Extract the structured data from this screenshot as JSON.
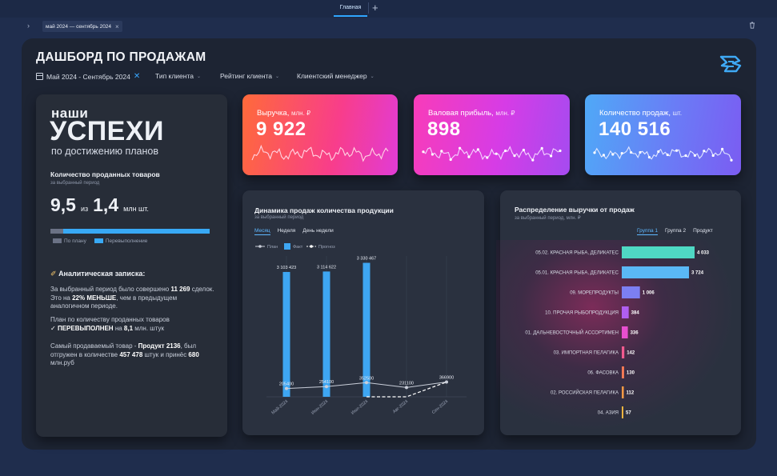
{
  "tabs": {
    "home": "Главная"
  },
  "filter_chip": "май 2024 — сентябрь 2024",
  "title": "ДАШБОРД ПО ПРОДАЖАМ",
  "filters": {
    "period": "Май 2024 - Сентябрь 2024",
    "client_type": "Тип клиента",
    "client_rating": "Рейтинг клиента",
    "client_manager": "Клиентский менеджер"
  },
  "success": {
    "line1": "наши",
    "line2": "УСПЕХИ",
    "line3": "по достижению планов",
    "sold_title": "Количество проданных товаров",
    "sold_period": "за выбранный период",
    "value_a": "9,5",
    "from": "из",
    "value_b": "1,4",
    "unit": "млн шт.",
    "overfulfillment": 0.92,
    "legend_plan": "По плану",
    "legend_over": "Перевыполнение",
    "note_title": "Аналитическая записка:",
    "n1_pre": "За выбранный период было совершено ",
    "n1_deals": "11 269",
    "n1_mid": " сделок. Это на ",
    "n1_pct": "22% МЕНЬШЕ",
    "n1_post": ", чем в предыдущем аналогичном периоде.",
    "n2_pre": "План по количеству проданных товаров",
    "n2_bold": "ПЕРЕВЫПОЛНЕН",
    "n2_mid": " на ",
    "n2_val": "8,1",
    "n2_post": " млн. штук",
    "n3_pre": "Самый продаваемый товар - ",
    "n3_prod": "Продукт 2136",
    "n3_mid": ", был отгружен в количестве ",
    "n3_qty": "457 478",
    "n3_mid2": " штук и принёс ",
    "n3_rev": "680",
    "n3_post": " млн.руб"
  },
  "kpis": [
    {
      "label": "Выручка,",
      "unit": "млн. ₽",
      "value": "9 922"
    },
    {
      "label": "Валовая прибыль,",
      "unit": "млн. ₽",
      "value": "898"
    },
    {
      "label": "Количество продаж,",
      "unit": "шт.",
      "value": "140 516"
    }
  ],
  "dynamics": {
    "title": "Динамика продаж количества продукции",
    "period": "за выбранный период",
    "tabs": [
      "Месяц",
      "Неделя",
      "День недели"
    ],
    "legend": [
      "План",
      "Факт",
      "Прогноз"
    ]
  },
  "distribution": {
    "title": "Распределение выручки от продаж",
    "period": "за выбранный период, млн. ₽",
    "tabs": [
      "Группа 1",
      "Группа 2",
      "Продукт"
    ]
  },
  "chart_data": [
    {
      "type": "bar",
      "title": "Динамика продаж количества продукции",
      "categories": [
        "Май-2024",
        "Июн-2024",
        "Июл-2024",
        "Авг-2024",
        "Сен-2024"
      ],
      "series": [
        {
          "name": "Факт",
          "values": [
            3103423,
            3114622,
            3330467,
            null,
            null
          ],
          "labels": [
            "3 103 423",
            "3 114 622",
            "3 330 467",
            "",
            ""
          ],
          "color": "#3ea6f2"
        },
        {
          "name": "План",
          "values": [
            205400,
            254100,
            352500,
            231100,
            366900
          ],
          "labels": [
            "205400",
            "254100",
            "352500",
            "231100",
            "366900"
          ],
          "color": "#c9ced9"
        },
        {
          "name": "Прогноз",
          "values": [
            null,
            null,
            0,
            0,
            366900
          ],
          "color": "#ffffff"
        }
      ],
      "ylim": [
        0,
        3500000
      ]
    },
    {
      "type": "bar",
      "orientation": "horizontal",
      "title": "Распределение выручки от продаж",
      "categories": [
        "05.02. КРАСНАЯ РЫБА, ДЕЛИКАТЕС",
        "05.01. КРАСНАЯ РЫБА, ДЕЛИКАТЕС",
        "09. МОРЕПРОДУКТЫ",
        "10. ПРОЧАЯ РЫБОПРОДУКЦИЯ",
        "01. ДАЛЬНЕВОСТОЧНЫЙ АССОРТИМЕН",
        "03. ИМПОРТНАЯ ПЕЛАГИКА",
        "06. ФАСОВКА",
        "02. РОССИЙСКАЯ ПЕЛАГИКА",
        "04. АЗИЯ"
      ],
      "values": [
        4033,
        3724,
        1006,
        384,
        336,
        142,
        130,
        112,
        57
      ],
      "labels": [
        "4 033",
        "3 724",
        "1 006",
        "384",
        "336",
        "142",
        "130",
        "112",
        "57"
      ],
      "colors": [
        "#4fd8c4",
        "#5ab8f5",
        "#7c7ff2",
        "#b05ef0",
        "#e84fd0",
        "#f25a8f",
        "#f57a55",
        "#f59a45",
        "#f0b440"
      ]
    }
  ],
  "colors": {
    "accent": "#39a8ff",
    "board": "#1d2433",
    "card": "#2a313f",
    "background": "#1f2d4d"
  },
  "icons": {
    "calendar": "calendar-icon",
    "close": "close-icon",
    "chevron": "chevron-down-icon",
    "trash": "trash-icon",
    "add": "plus-icon"
  }
}
